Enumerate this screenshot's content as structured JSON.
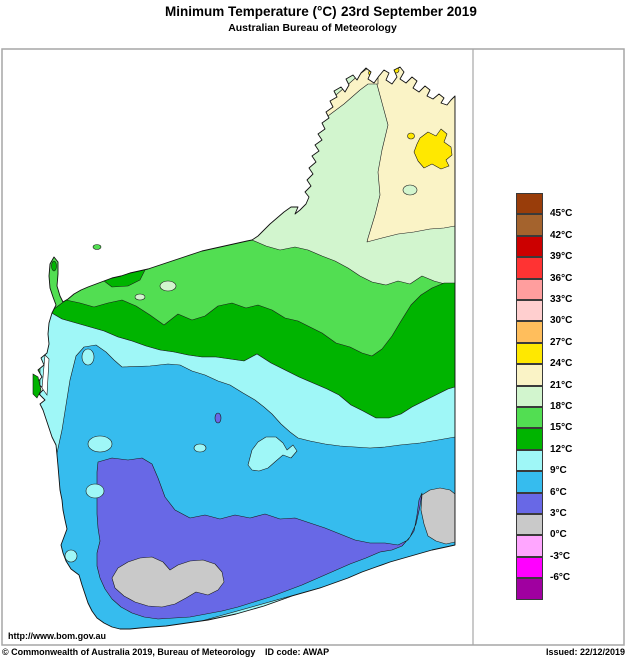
{
  "header": {
    "title_left": "Minimum Temperature (°C)",
    "title_right": "23rd September 2019",
    "subtitle": "Australian Bureau of Meteorology"
  },
  "map": {
    "region": "Western Australia",
    "url_label": "http://www.bom.gov.au",
    "band_colors": {
      "b24_27": "#FFE800",
      "b21_24": "#FAF3C6",
      "b18_21": "#D2F5CE",
      "b15_18": "#52DE52",
      "b12_15": "#00B400",
      "b9_12": "#9FF7F7",
      "b6_9": "#36BCEE",
      "b3_6": "#6868E6",
      "b0_3": "#C9C9C9",
      "ocean": "#FFFFFF",
      "outline": "#1b1b1b"
    }
  },
  "legend": {
    "blocks": [
      {
        "color": "#993D0A",
        "label": "45°C"
      },
      {
        "color": "#A4632D",
        "label": "42°C"
      },
      {
        "color": "#CC0000",
        "label": "39°C"
      },
      {
        "color": "#FF3333",
        "label": "36°C"
      },
      {
        "color": "#FF9E9E",
        "label": "33°C"
      },
      {
        "color": "#FFCFCF",
        "label": "30°C"
      },
      {
        "color": "#FFBE5C",
        "label": "27°C"
      },
      {
        "color": "#FFE800",
        "label": "24°C"
      },
      {
        "color": "#FAF3C6",
        "label": "21°C"
      },
      {
        "color": "#D2F5CE",
        "label": "18°C"
      },
      {
        "color": "#52DE52",
        "label": "15°C"
      },
      {
        "color": "#00B400",
        "label": "12°C"
      },
      {
        "color": "#9FF7F7",
        "label": "9°C"
      },
      {
        "color": "#36BCEE",
        "label": "6°C"
      },
      {
        "color": "#6868E6",
        "label": "3°C"
      },
      {
        "color": "#C9C9C9",
        "label": "0°C"
      },
      {
        "color": "#FFA6FF",
        "label": "-3°C"
      },
      {
        "color": "#FF00FF",
        "label": "-6°C"
      },
      {
        "color": "#A000A0",
        "label": ""
      }
    ]
  },
  "footer": {
    "copyright": "© Commonwealth of Australia 2019, Bureau of Meteorology",
    "id_code": "ID code: AWAP",
    "issued": "Issued: 22/12/2019"
  }
}
